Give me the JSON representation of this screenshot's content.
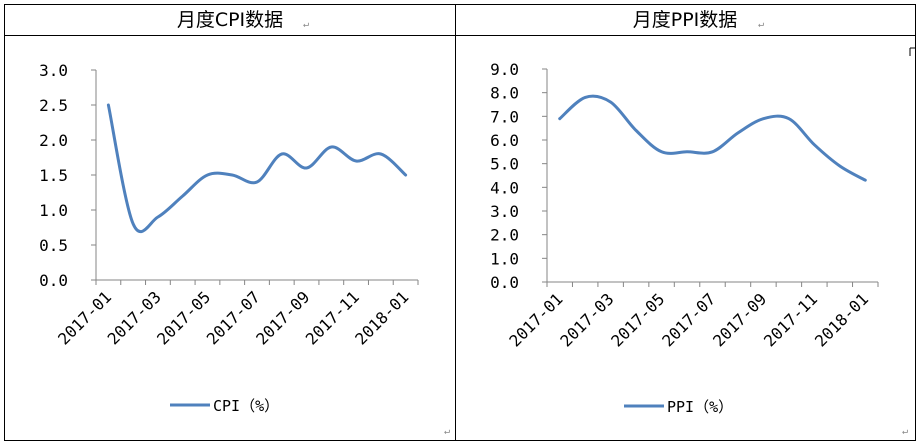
{
  "panels": [
    {
      "id": "cpi",
      "title": "月度CPI数据",
      "legend": "CPI（%）",
      "chart_data": {
        "type": "line",
        "title": "月度CPI数据",
        "xlabel": "",
        "ylabel": "",
        "x": [
          "2017-01",
          "2017-02",
          "2017-03",
          "2017-04",
          "2017-05",
          "2017-06",
          "2017-07",
          "2017-08",
          "2017-09",
          "2017-10",
          "2017-11",
          "2017-12",
          "2018-01"
        ],
        "x_tick_labels": [
          "2017-01",
          "2017-03",
          "2017-05",
          "2017-07",
          "2017-09",
          "2017-11",
          "2018-01"
        ],
        "y_tick_labels": [
          "0.0",
          "0.5",
          "1.0",
          "1.5",
          "2.0",
          "2.5",
          "3.0"
        ],
        "series": [
          {
            "name": "CPI（%）",
            "values": [
              2.5,
              0.8,
              0.9,
              1.2,
              1.5,
              1.5,
              1.4,
              1.8,
              1.6,
              1.9,
              1.7,
              1.8,
              1.5
            ]
          }
        ],
        "ylim": [
          0,
          3
        ],
        "grid": false,
        "legend_position": "bottom",
        "line_color": "#4F81BD"
      }
    },
    {
      "id": "ppi",
      "title": "月度PPI数据",
      "legend": "PPI（%）",
      "chart_data": {
        "type": "line",
        "title": "月度PPI数据",
        "xlabel": "",
        "ylabel": "",
        "x": [
          "2017-01",
          "2017-02",
          "2017-03",
          "2017-04",
          "2017-05",
          "2017-06",
          "2017-07",
          "2017-08",
          "2017-09",
          "2017-10",
          "2017-11",
          "2017-12",
          "2018-01"
        ],
        "x_tick_labels": [
          "2017-01",
          "2017-03",
          "2017-05",
          "2017-07",
          "2017-09",
          "2017-11",
          "2018-01"
        ],
        "y_tick_labels": [
          "0.0",
          "1.0",
          "2.0",
          "3.0",
          "4.0",
          "5.0",
          "6.0",
          "7.0",
          "8.0",
          "9.0"
        ],
        "series": [
          {
            "name": "PPI（%）",
            "values": [
              6.9,
              7.8,
              7.6,
              6.4,
              5.5,
              5.5,
              5.5,
              6.3,
              6.9,
              6.9,
              5.8,
              4.9,
              4.3
            ]
          }
        ],
        "ylim": [
          0,
          9
        ],
        "grid": false,
        "legend_position": "bottom",
        "line_color": "#4F81BD"
      }
    }
  ]
}
